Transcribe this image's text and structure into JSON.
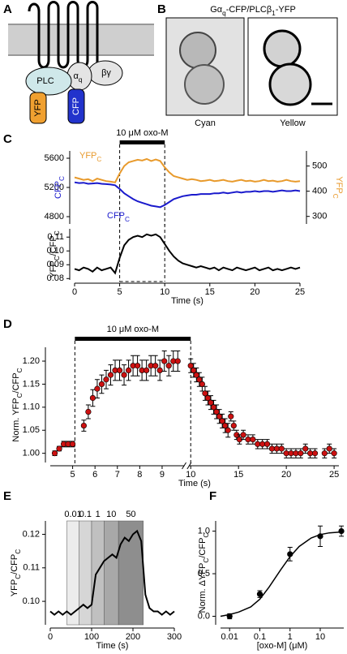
{
  "panel_labels": [
    "A",
    "B",
    "C",
    "D",
    "E",
    "F"
  ],
  "diagram": {
    "plc": "PLC",
    "alpha": [
      "α",
      "q"
    ],
    "betagamma": "βγ",
    "yfp": "YFP",
    "cfp": "CFP"
  },
  "images": {
    "title": [
      "Gα",
      "q",
      "-CFP/PLCβ",
      "1",
      "-YFP"
    ],
    "captions": [
      "Cyan",
      "Yellow"
    ]
  },
  "chart_data": [
    {
      "type": "line",
      "annotation": "10 μM oxo-M",
      "stimulus": [
        5,
        10
      ],
      "ylabel": [
        "CFP",
        "C"
      ],
      "y2label": [
        "YFP",
        "C"
      ],
      "ylim": [
        4700,
        5700
      ],
      "yticks": [
        4800,
        5200,
        5600
      ],
      "y2lim": [
        270,
        560
      ],
      "y2ticks": [
        300,
        400,
        500
      ],
      "x": [
        0,
        0.5,
        1,
        1.5,
        2,
        2.5,
        3,
        3.5,
        4,
        4.5,
        5,
        5.5,
        6,
        6.5,
        7,
        7.5,
        8,
        8.5,
        9,
        9.5,
        10,
        10.5,
        11,
        11.5,
        12,
        12.5,
        13,
        13.5,
        14,
        14.5,
        15,
        15.5,
        16,
        16.5,
        17,
        17.5,
        18,
        18.5,
        19,
        19.5,
        20,
        20.5,
        21,
        21.5,
        22,
        22.5,
        23,
        23.5,
        24,
        24.5,
        25
      ],
      "xlim": [
        0,
        25
      ],
      "series": [
        {
          "name": [
            "YFP",
            "C"
          ],
          "color": "#e89a2c",
          "axis": "y2",
          "values": [
            455,
            450,
            445,
            448,
            440,
            450,
            445,
            440,
            438,
            435,
            470,
            500,
            515,
            520,
            525,
            522,
            528,
            520,
            526,
            520,
            495,
            475,
            460,
            455,
            450,
            445,
            448,
            445,
            440,
            442,
            445,
            440,
            442,
            445,
            440,
            438,
            442,
            445,
            440,
            442,
            438,
            440,
            445,
            440,
            442,
            438,
            440,
            445,
            440,
            438,
            440
          ]
        },
        {
          "name": [
            "CFP",
            "C"
          ],
          "color": "#1a1acc",
          "values": [
            5270,
            5260,
            5265,
            5250,
            5255,
            5260,
            5250,
            5245,
            5240,
            5230,
            5180,
            5120,
            5080,
            5040,
            5010,
            4990,
            4970,
            4950,
            4940,
            4930,
            4960,
            5000,
            5040,
            5060,
            5080,
            5090,
            5100,
            5100,
            5110,
            5110,
            5110,
            5120,
            5120,
            5130,
            5120,
            5130,
            5140,
            5130,
            5140,
            5140,
            5150,
            5140,
            5150,
            5150,
            5140,
            5150,
            5160,
            5150,
            5150,
            5160,
            5150
          ]
        }
      ]
    },
    {
      "type": "line",
      "stimulus": [
        5,
        10
      ],
      "ylabel": [
        "YFP",
        "C",
        "/CFP",
        "C"
      ],
      "xlabel": "Time (s)",
      "ylim": [
        0.079,
        0.116
      ],
      "yticks": [
        0.08,
        0.09,
        {
          "value": 0.1,
          "label": "0.10"
        },
        0.11
      ],
      "xlim": [
        0,
        25
      ],
      "xticks": [
        0,
        5,
        10,
        15,
        20,
        25
      ],
      "x": [
        0,
        0.5,
        1,
        1.5,
        2,
        2.5,
        3,
        3.5,
        4,
        4.5,
        5,
        5.5,
        6,
        6.5,
        7,
        7.5,
        8,
        8.5,
        9,
        9.5,
        10,
        10.5,
        11,
        11.5,
        12,
        12.5,
        13,
        13.5,
        14,
        14.5,
        15,
        15.5,
        16,
        16.5,
        17,
        17.5,
        18,
        18.5,
        19,
        19.5,
        20,
        20.5,
        21,
        21.5,
        22,
        22.5,
        23,
        23.5,
        24,
        24.5,
        25
      ],
      "series": [
        {
          "color": "#000000",
          "values": [
            0.087,
            0.086,
            0.088,
            0.087,
            0.085,
            0.088,
            0.086,
            0.087,
            0.088,
            0.084,
            0.095,
            0.104,
            0.108,
            0.11,
            0.111,
            0.11,
            0.112,
            0.111,
            0.112,
            0.11,
            0.105,
            0.1,
            0.096,
            0.093,
            0.091,
            0.09,
            0.089,
            0.088,
            0.089,
            0.088,
            0.087,
            0.088,
            0.086,
            0.088,
            0.087,
            0.086,
            0.088,
            0.087,
            0.086,
            0.087,
            0.088,
            0.086,
            0.087,
            0.088,
            0.086,
            0.087,
            0.086,
            0.087,
            0.088,
            0.087,
            0.088
          ]
        }
      ]
    },
    {
      "type": "scatter",
      "annotation": "10 μM oxo-M",
      "stimulus": [
        5.1,
        10
      ],
      "ylabel": [
        "Norm. YFP",
        "C",
        "/CFP",
        "C"
      ],
      "xlabel": "Time (s)",
      "ylim": [
        0.98,
        1.23
      ],
      "yticks": [
        {
          "value": 1,
          "label": "1.00"
        },
        1.05,
        {
          "value": 1.1,
          "label": "1.10"
        },
        1.15,
        {
          "value": 1.2,
          "label": "1.20"
        }
      ],
      "x_segments": [
        {
          "xlim": [
            4,
            10
          ],
          "xticks": [
            5,
            6,
            7,
            8,
            9
          ]
        },
        {
          "xlim": [
            9.8,
            25.5
          ],
          "xticks": [
            10,
            15,
            20,
            25
          ]
        }
      ],
      "x": [
        4.2,
        4.4,
        4.6,
        4.8,
        5.0,
        5.5,
        5.7,
        5.9,
        6.1,
        6.3,
        6.5,
        6.7,
        6.9,
        7.1,
        7.3,
        7.5,
        7.7,
        7.9,
        8.1,
        8.3,
        8.5,
        8.7,
        8.9,
        9.1,
        9.3,
        9.5,
        9.7,
        10.0,
        10.3,
        10.6,
        10.9,
        11.2,
        11.5,
        11.8,
        12.1,
        12.4,
        12.7,
        13.0,
        13.3,
        13.6,
        13.9,
        14.2,
        14.5,
        14.8,
        15.1,
        15.5,
        16.0,
        16.5,
        17.0,
        17.5,
        18.0,
        18.5,
        19.0,
        19.5,
        20.0,
        20.5,
        21.0,
        21.5,
        22.0,
        22.5,
        23.0,
        24.0,
        24.5,
        25.0
      ],
      "series": [
        {
          "color": "#cc1111",
          "values": [
            1.0,
            1.01,
            1.02,
            1.02,
            1.02,
            1.06,
            1.09,
            1.12,
            1.14,
            1.15,
            1.16,
            1.17,
            1.18,
            1.18,
            1.17,
            1.18,
            1.19,
            1.19,
            1.18,
            1.18,
            1.19,
            1.19,
            1.18,
            1.2,
            1.19,
            1.2,
            1.2,
            1.19,
            1.18,
            1.17,
            1.16,
            1.15,
            1.13,
            1.12,
            1.11,
            1.1,
            1.09,
            1.08,
            1.07,
            1.06,
            1.05,
            1.08,
            1.06,
            1.04,
            1.03,
            1.04,
            1.03,
            1.03,
            1.02,
            1.02,
            1.02,
            1.01,
            1.01,
            1.01,
            1.0,
            1.0,
            1.0,
            1.0,
            1.01,
            1.0,
            1.0,
            1.0,
            1.01,
            1.0
          ],
          "errors": [
            0.005,
            0.005,
            0.006,
            0.006,
            0.006,
            0.012,
            0.015,
            0.018,
            0.02,
            0.02,
            0.02,
            0.022,
            0.022,
            0.022,
            0.022,
            0.022,
            0.022,
            0.022,
            0.022,
            0.022,
            0.022,
            0.022,
            0.022,
            0.022,
            0.022,
            0.022,
            0.022,
            0.015,
            0.015,
            0.015,
            0.015,
            0.015,
            0.015,
            0.015,
            0.015,
            0.015,
            0.015,
            0.015,
            0.015,
            0.015,
            0.015,
            0.01,
            0.01,
            0.01,
            0.01,
            0.01,
            0.01,
            0.01,
            0.01,
            0.01,
            0.01,
            0.01,
            0.01,
            0.01,
            0.01,
            0.01,
            0.01,
            0.01,
            0.01,
            0.01,
            0.01,
            0.01,
            0.01,
            0.01
          ]
        }
      ]
    },
    {
      "type": "line",
      "ylabel": [
        "YFP",
        "C",
        "/CFP",
        "C"
      ],
      "xlabel": "Time (s)",
      "ylim": [
        0.093,
        0.124
      ],
      "yticks": [
        {
          "value": 0.1,
          "label": "0.10"
        },
        0.11,
        0.12
      ],
      "xlim": [
        0,
        300
      ],
      "xticks": [
        0,
        100,
        200,
        300
      ],
      "bands": [
        {
          "label": "0.01",
          "start": 40,
          "end": 70,
          "color": "#ececec"
        },
        {
          "label": "0.1",
          "start": 70,
          "end": 100,
          "color": "#d6d6d6"
        },
        {
          "label": "1",
          "start": 100,
          "end": 130,
          "color": "#c0c0c0"
        },
        {
          "label": "10",
          "start": 130,
          "end": 165,
          "color": "#a8a8a8"
        },
        {
          "label": "50",
          "start": 165,
          "end": 225,
          "color": "#8e8e8e"
        }
      ],
      "x": [
        0,
        10,
        20,
        30,
        40,
        50,
        60,
        70,
        80,
        90,
        100,
        110,
        120,
        130,
        140,
        150,
        160,
        170,
        180,
        190,
        200,
        210,
        220,
        230,
        240,
        250,
        260,
        270,
        280,
        290,
        300
      ],
      "series": [
        {
          "color": "#000000",
          "values": [
            0.097,
            0.096,
            0.097,
            0.096,
            0.097,
            0.096,
            0.097,
            0.098,
            0.099,
            0.098,
            0.099,
            0.108,
            0.11,
            0.112,
            0.113,
            0.114,
            0.113,
            0.117,
            0.119,
            0.118,
            0.12,
            0.121,
            0.118,
            0.102,
            0.098,
            0.097,
            0.097,
            0.096,
            0.097,
            0.096,
            0.097
          ]
        }
      ]
    },
    {
      "type": "scatter",
      "ylabel": [
        "Norm. ΔYFP",
        "C",
        "/CFP",
        "C"
      ],
      "xlabel": "[oxo-M] (μM)",
      "xlog": true,
      "xlim": [
        0.005,
        60
      ],
      "xticks": [
        0.01,
        0.1,
        1,
        10
      ],
      "ylim": [
        -0.1,
        1.12
      ],
      "yticks": [
        {
          "value": 0,
          "label": "0.0"
        },
        {
          "value": 0.5,
          "label": "0.5"
        },
        {
          "value": 1,
          "label": "1.0"
        }
      ],
      "x": [
        0.01,
        0.1,
        1,
        10,
        50
      ],
      "series": [
        {
          "color": "#000000",
          "values": [
            0.0,
            0.26,
            0.73,
            0.94,
            1.0
          ],
          "errors": [
            0.03,
            0.04,
            0.08,
            0.12,
            0.06
          ]
        }
      ],
      "fit": {
        "x": [
          0.005,
          0.01,
          0.02,
          0.05,
          0.1,
          0.2,
          0.5,
          1,
          2,
          5,
          10,
          20,
          50
        ],
        "values": [
          0.0,
          0.02,
          0.05,
          0.11,
          0.2,
          0.34,
          0.55,
          0.7,
          0.82,
          0.92,
          0.96,
          0.98,
          0.99
        ]
      }
    }
  ]
}
